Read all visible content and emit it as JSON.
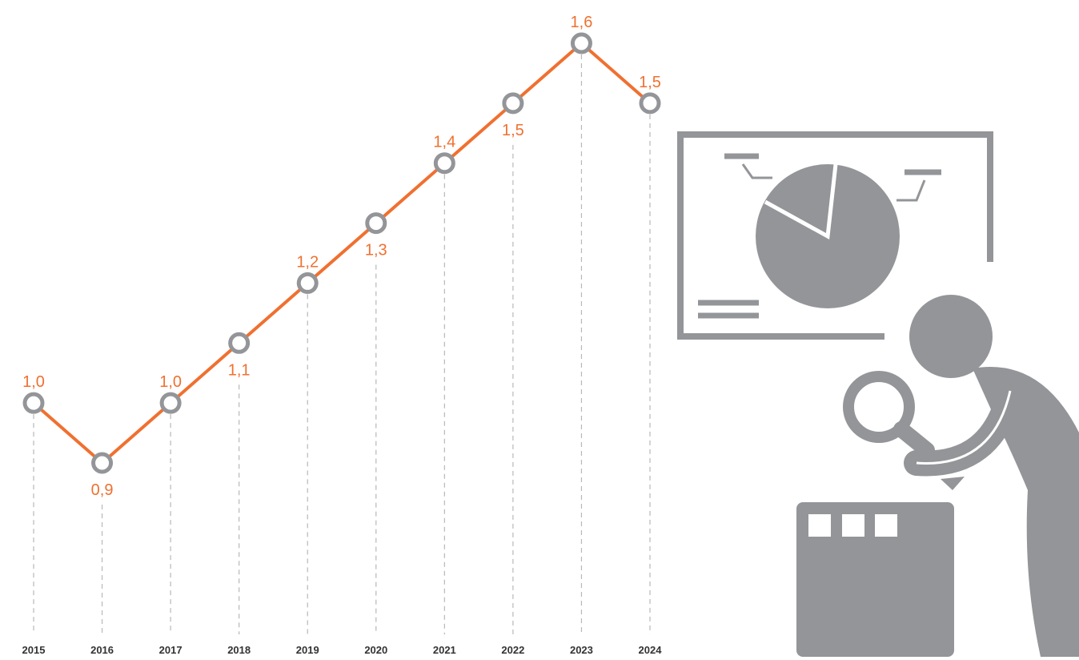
{
  "chart_data": {
    "type": "line",
    "categories": [
      "2015",
      "2016",
      "2017",
      "2018",
      "2019",
      "2020",
      "2021",
      "2022",
      "2023",
      "2024"
    ],
    "values": [
      1.0,
      0.9,
      1.0,
      1.1,
      1.2,
      1.3,
      1.4,
      1.5,
      1.6,
      1.5
    ],
    "value_labels": [
      "1,0",
      "0,9",
      "1,0",
      "1,1",
      "1,2",
      "1,3",
      "1,4",
      "1,5",
      "1,6",
      "1,5"
    ],
    "color": "#f07030",
    "marker_color": "#939598"
  }
}
